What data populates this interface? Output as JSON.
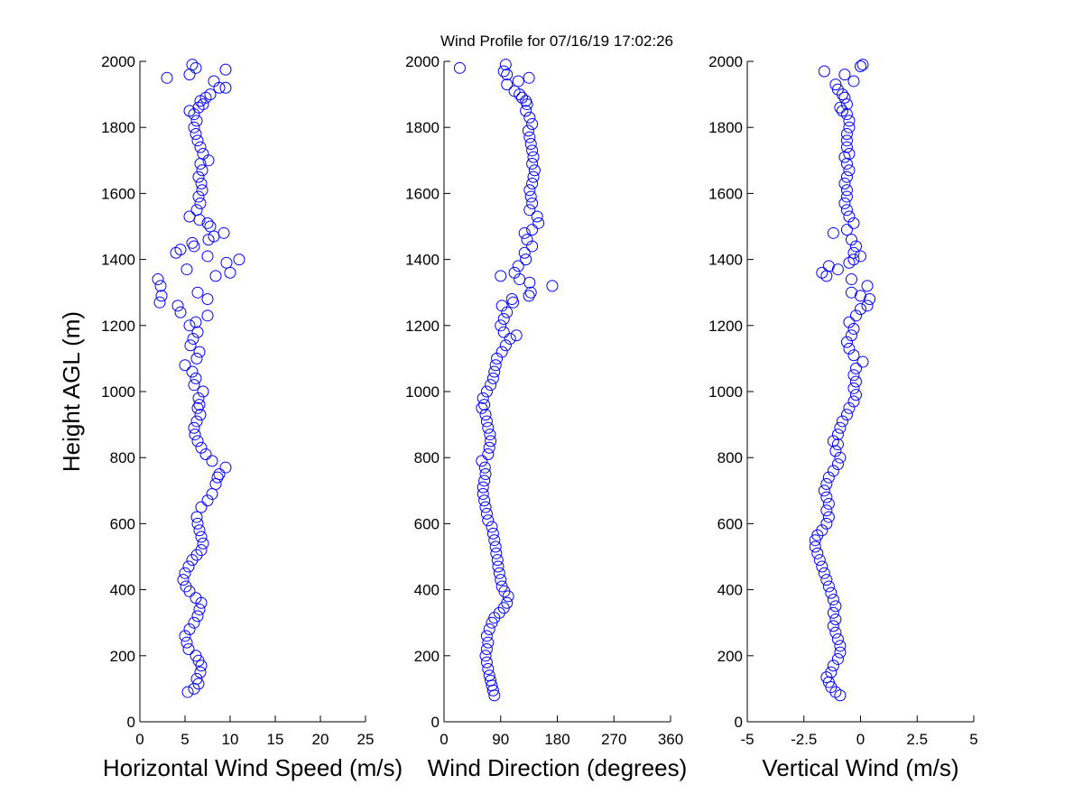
{
  "figure": {
    "title": "Wind Profile for  07/16/19 17:02:26"
  },
  "chart_data": [
    {
      "type": "scatter",
      "xlabel": "Horizontal Wind Speed (m/s)",
      "ylabel": "Height AGL (m)",
      "xlim": [
        0,
        25
      ],
      "ylim": [
        0,
        2000
      ],
      "xticks": [
        "0",
        "5",
        "10",
        "15",
        "20",
        "25"
      ],
      "yticks": [
        "0",
        "200",
        "400",
        "600",
        "800",
        "1000",
        "1200",
        "1400",
        "1600",
        "1800",
        "2000"
      ],
      "marker": "circle",
      "color": "#0000ff",
      "points": [
        [
          5.3,
          90
        ],
        [
          6.0,
          100
        ],
        [
          6.5,
          115
        ],
        [
          6.3,
          130
        ],
        [
          6.7,
          150
        ],
        [
          6.8,
          170
        ],
        [
          6.5,
          185
        ],
        [
          6.2,
          200
        ],
        [
          5.4,
          220
        ],
        [
          5.2,
          240
        ],
        [
          5.0,
          260
        ],
        [
          5.5,
          280
        ],
        [
          6.0,
          300
        ],
        [
          6.4,
          320
        ],
        [
          6.6,
          340
        ],
        [
          6.8,
          360
        ],
        [
          6.2,
          375
        ],
        [
          5.5,
          395
        ],
        [
          5.1,
          410
        ],
        [
          4.8,
          430
        ],
        [
          5.0,
          450
        ],
        [
          5.4,
          470
        ],
        [
          5.8,
          490
        ],
        [
          6.3,
          505
        ],
        [
          6.8,
          520
        ],
        [
          7.0,
          540
        ],
        [
          6.8,
          560
        ],
        [
          6.6,
          580
        ],
        [
          6.4,
          600
        ],
        [
          6.3,
          620
        ],
        [
          6.8,
          650
        ],
        [
          7.5,
          670
        ],
        [
          8.0,
          690
        ],
        [
          8.4,
          720
        ],
        [
          8.6,
          740
        ],
        [
          8.8,
          750
        ],
        [
          9.5,
          770
        ],
        [
          8.0,
          790
        ],
        [
          7.3,
          810
        ],
        [
          6.8,
          830
        ],
        [
          6.4,
          850
        ],
        [
          6.1,
          870
        ],
        [
          6.0,
          890
        ],
        [
          6.3,
          910
        ],
        [
          6.7,
          930
        ],
        [
          6.4,
          950
        ],
        [
          6.6,
          960
        ],
        [
          6.5,
          980
        ],
        [
          7.0,
          1000
        ],
        [
          6.0,
          1020
        ],
        [
          6.2,
          1040
        ],
        [
          5.8,
          1060
        ],
        [
          5.0,
          1080
        ],
        [
          6.3,
          1100
        ],
        [
          6.6,
          1120
        ],
        [
          5.6,
          1140
        ],
        [
          5.9,
          1160
        ],
        [
          6.4,
          1180
        ],
        [
          5.5,
          1200
        ],
        [
          6.2,
          1210
        ],
        [
          7.5,
          1230
        ],
        [
          4.5,
          1240
        ],
        [
          4.2,
          1260
        ],
        [
          2.2,
          1270
        ],
        [
          7.5,
          1280
        ],
        [
          2.4,
          1290
        ],
        [
          6.4,
          1300
        ],
        [
          2.3,
          1320
        ],
        [
          2.0,
          1340
        ],
        [
          8.4,
          1350
        ],
        [
          10.0,
          1360
        ],
        [
          5.2,
          1370
        ],
        [
          9.6,
          1390
        ],
        [
          11.0,
          1400
        ],
        [
          7.5,
          1410
        ],
        [
          4.0,
          1420
        ],
        [
          4.5,
          1430
        ],
        [
          6.0,
          1440
        ],
        [
          5.8,
          1450
        ],
        [
          8.2,
          1470
        ],
        [
          7.6,
          1460
        ],
        [
          9.3,
          1480
        ],
        [
          7.8,
          1500
        ],
        [
          7.5,
          1510
        ],
        [
          6.6,
          1520
        ],
        [
          5.5,
          1530
        ],
        [
          6.3,
          1550
        ],
        [
          6.7,
          1570
        ],
        [
          6.5,
          1590
        ],
        [
          6.9,
          1610
        ],
        [
          6.8,
          1630
        ],
        [
          6.5,
          1650
        ],
        [
          6.9,
          1670
        ],
        [
          6.7,
          1690
        ],
        [
          7.6,
          1700
        ],
        [
          7.0,
          1720
        ],
        [
          6.7,
          1740
        ],
        [
          6.4,
          1760
        ],
        [
          6.2,
          1780
        ],
        [
          6.0,
          1800
        ],
        [
          6.3,
          1820
        ],
        [
          6.0,
          1840
        ],
        [
          5.5,
          1850
        ],
        [
          6.5,
          1860
        ],
        [
          7.0,
          1870
        ],
        [
          6.7,
          1880
        ],
        [
          7.3,
          1890
        ],
        [
          7.8,
          1900
        ],
        [
          8.8,
          1920
        ],
        [
          9.5,
          1920
        ],
        [
          8.2,
          1940
        ],
        [
          3.0,
          1950
        ],
        [
          5.5,
          1960
        ],
        [
          6.2,
          1980
        ],
        [
          9.5,
          1975
        ],
        [
          5.8,
          1990
        ]
      ]
    },
    {
      "type": "scatter",
      "xlabel": "Wind Direction (degrees)",
      "ylabel": "",
      "xlim": [
        0,
        360
      ],
      "ylim": [
        0,
        2000
      ],
      "xticks": [
        "0",
        "90",
        "180",
        "270",
        "360"
      ],
      "yticks": [
        "0",
        "200",
        "400",
        "600",
        "800",
        "1000",
        "1200",
        "1400",
        "1600",
        "1800",
        "2000"
      ],
      "marker": "circle",
      "color": "#0000ff",
      "points": [
        [
          80,
          80
        ],
        [
          78,
          95
        ],
        [
          76,
          110
        ],
        [
          74,
          125
        ],
        [
          72,
          140
        ],
        [
          70,
          160
        ],
        [
          68,
          180
        ],
        [
          66,
          200
        ],
        [
          68,
          220
        ],
        [
          70,
          240
        ],
        [
          68,
          260
        ],
        [
          72,
          280
        ],
        [
          76,
          300
        ],
        [
          80,
          315
        ],
        [
          88,
          330
        ],
        [
          95,
          345
        ],
        [
          100,
          360
        ],
        [
          102,
          380
        ],
        [
          96,
          395
        ],
        [
          92,
          410
        ],
        [
          90,
          430
        ],
        [
          88,
          450
        ],
        [
          86,
          470
        ],
        [
          85,
          490
        ],
        [
          83,
          510
        ],
        [
          82,
          530
        ],
        [
          80,
          550
        ],
        [
          78,
          570
        ],
        [
          76,
          590
        ],
        [
          70,
          610
        ],
        [
          68,
          630
        ],
        [
          66,
          650
        ],
        [
          64,
          670
        ],
        [
          62,
          690
        ],
        [
          62,
          710
        ],
        [
          64,
          730
        ],
        [
          66,
          750
        ],
        [
          65,
          770
        ],
        [
          60,
          790
        ],
        [
          70,
          810
        ],
        [
          72,
          830
        ],
        [
          74,
          850
        ],
        [
          73,
          870
        ],
        [
          70,
          890
        ],
        [
          68,
          910
        ],
        [
          66,
          930
        ],
        [
          60,
          950
        ],
        [
          64,
          960
        ],
        [
          62,
          980
        ],
        [
          68,
          1000
        ],
        [
          74,
          1020
        ],
        [
          78,
          1040
        ],
        [
          80,
          1060
        ],
        [
          82,
          1080
        ],
        [
          84,
          1100
        ],
        [
          92,
          1120
        ],
        [
          98,
          1140
        ],
        [
          105,
          1160
        ],
        [
          115,
          1170
        ],
        [
          95,
          1180
        ],
        [
          90,
          1200
        ],
        [
          95,
          1220
        ],
        [
          100,
          1240
        ],
        [
          92,
          1260
        ],
        [
          110,
          1270
        ],
        [
          108,
          1280
        ],
        [
          135,
          1290
        ],
        [
          138,
          1300
        ],
        [
          172,
          1320
        ],
        [
          136,
          1330
        ],
        [
          90,
          1350
        ],
        [
          120,
          1340
        ],
        [
          112,
          1360
        ],
        [
          118,
          1380
        ],
        [
          130,
          1400
        ],
        [
          128,
          1420
        ],
        [
          140,
          1440
        ],
        [
          132,
          1460
        ],
        [
          128,
          1480
        ],
        [
          140,
          1490
        ],
        [
          150,
          1510
        ],
        [
          148,
          1530
        ],
        [
          136,
          1550
        ],
        [
          140,
          1570
        ],
        [
          138,
          1590
        ],
        [
          136,
          1610
        ],
        [
          140,
          1630
        ],
        [
          142,
          1650
        ],
        [
          144,
          1670
        ],
        [
          140,
          1690
        ],
        [
          142,
          1710
        ],
        [
          140,
          1730
        ],
        [
          138,
          1750
        ],
        [
          136,
          1770
        ],
        [
          134,
          1790
        ],
        [
          140,
          1810
        ],
        [
          136,
          1830
        ],
        [
          130,
          1850
        ],
        [
          132,
          1870
        ],
        [
          130,
          1880
        ],
        [
          124,
          1890
        ],
        [
          120,
          1900
        ],
        [
          112,
          1910
        ],
        [
          100,
          1930
        ],
        [
          118,
          1940
        ],
        [
          135,
          1950
        ],
        [
          100,
          1960
        ],
        [
          95,
          1970
        ],
        [
          25,
          1980
        ],
        [
          98,
          1990
        ]
      ]
    },
    {
      "type": "scatter",
      "xlabel": "Vertical Wind (m/s)",
      "ylabel": "",
      "xlim": [
        -5,
        5
      ],
      "ylim": [
        0,
        2000
      ],
      "xticks": [
        "-5",
        "-2.5",
        "0",
        "2.5",
        "5"
      ],
      "yticks": [
        "0",
        "200",
        "400",
        "600",
        "800",
        "1000",
        "1200",
        "1400",
        "1600",
        "1800",
        "2000"
      ],
      "marker": "circle",
      "color": "#0000ff",
      "points": [
        [
          -0.9,
          80
        ],
        [
          -1.1,
          90
        ],
        [
          -1.3,
          105
        ],
        [
          -1.4,
          120
        ],
        [
          -1.5,
          135
        ],
        [
          -1.3,
          150
        ],
        [
          -1.2,
          170
        ],
        [
          -1.0,
          190
        ],
        [
          -0.9,
          210
        ],
        [
          -0.9,
          230
        ],
        [
          -1.0,
          250
        ],
        [
          -1.1,
          270
        ],
        [
          -1.2,
          290
        ],
        [
          -1.1,
          310
        ],
        [
          -1.2,
          330
        ],
        [
          -1.1,
          350
        ],
        [
          -1.2,
          370
        ],
        [
          -1.3,
          390
        ],
        [
          -1.4,
          410
        ],
        [
          -1.5,
          430
        ],
        [
          -1.6,
          450
        ],
        [
          -1.7,
          470
        ],
        [
          -1.8,
          490
        ],
        [
          -1.9,
          510
        ],
        [
          -2.0,
          530
        ],
        [
          -2.0,
          550
        ],
        [
          -1.9,
          565
        ],
        [
          -1.7,
          580
        ],
        [
          -1.5,
          600
        ],
        [
          -1.4,
          620
        ],
        [
          -1.5,
          640
        ],
        [
          -1.4,
          660
        ],
        [
          -1.5,
          680
        ],
        [
          -1.6,
          700
        ],
        [
          -1.5,
          720
        ],
        [
          -1.4,
          740
        ],
        [
          -1.2,
          760
        ],
        [
          -1.0,
          780
        ],
        [
          -0.9,
          800
        ],
        [
          -1.1,
          820
        ],
        [
          -1.0,
          840
        ],
        [
          -1.2,
          850
        ],
        [
          -1.0,
          870
        ],
        [
          -0.9,
          890
        ],
        [
          -0.8,
          910
        ],
        [
          -0.6,
          930
        ],
        [
          -0.5,
          950
        ],
        [
          -0.3,
          970
        ],
        [
          -0.2,
          990
        ],
        [
          -0.3,
          1010
        ],
        [
          -0.2,
          1030
        ],
        [
          -0.3,
          1050
        ],
        [
          -0.2,
          1070
        ],
        [
          0.1,
          1090
        ],
        [
          -0.3,
          1110
        ],
        [
          -0.5,
          1130
        ],
        [
          -0.6,
          1150
        ],
        [
          -0.4,
          1170
        ],
        [
          -0.3,
          1190
        ],
        [
          -0.5,
          1210
        ],
        [
          -0.2,
          1230
        ],
        [
          0.0,
          1250
        ],
        [
          0.3,
          1260
        ],
        [
          0.4,
          1280
        ],
        [
          0.0,
          1290
        ],
        [
          -0.4,
          1300
        ],
        [
          0.3,
          1320
        ],
        [
          -0.4,
          1340
        ],
        [
          -1.5,
          1350
        ],
        [
          -1.7,
          1360
        ],
        [
          -1.0,
          1370
        ],
        [
          -1.4,
          1380
        ],
        [
          -0.5,
          1390
        ],
        [
          -0.3,
          1400
        ],
        [
          0.0,
          1410
        ],
        [
          -0.3,
          1420
        ],
        [
          -0.2,
          1440
        ],
        [
          -0.4,
          1460
        ],
        [
          -1.2,
          1480
        ],
        [
          -0.6,
          1490
        ],
        [
          -0.3,
          1510
        ],
        [
          -0.5,
          1530
        ],
        [
          -0.6,
          1550
        ],
        [
          -0.7,
          1570
        ],
        [
          -0.6,
          1590
        ],
        [
          -0.6,
          1610
        ],
        [
          -0.7,
          1630
        ],
        [
          -0.6,
          1650
        ],
        [
          -0.5,
          1670
        ],
        [
          -0.6,
          1690
        ],
        [
          -0.7,
          1710
        ],
        [
          -0.5,
          1720
        ],
        [
          -0.6,
          1740
        ],
        [
          -0.6,
          1760
        ],
        [
          -0.6,
          1780
        ],
        [
          -0.5,
          1800
        ],
        [
          -0.5,
          1820
        ],
        [
          -0.6,
          1840
        ],
        [
          -0.8,
          1850
        ],
        [
          -0.9,
          1860
        ],
        [
          -0.6,
          1870
        ],
        [
          -0.7,
          1890
        ],
        [
          -0.8,
          1900
        ],
        [
          -1.0,
          1915
        ],
        [
          -1.1,
          1930
        ],
        [
          -0.3,
          1940
        ],
        [
          -0.7,
          1960
        ],
        [
          -1.6,
          1970
        ],
        [
          0.0,
          1985
        ],
        [
          0.1,
          1990
        ]
      ]
    }
  ]
}
